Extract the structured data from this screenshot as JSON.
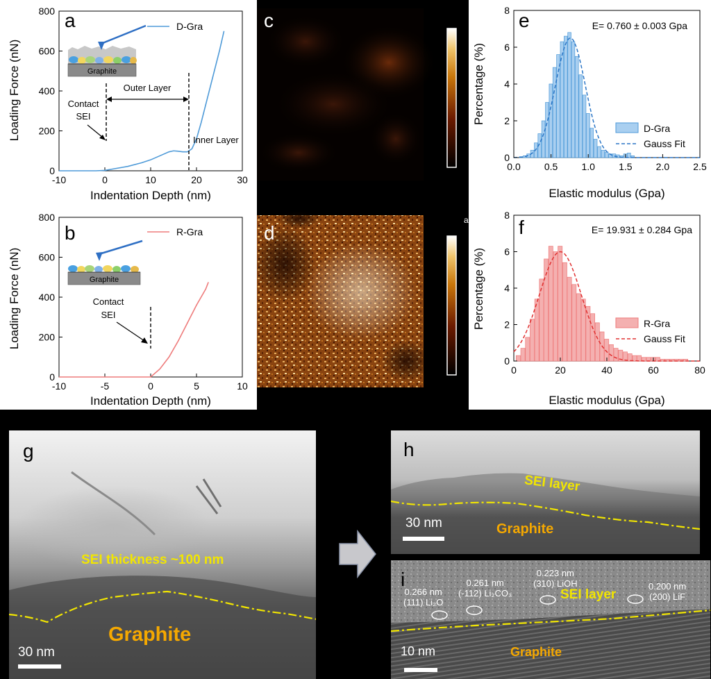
{
  "panel_labels": {
    "a": "a",
    "b": "b",
    "c": "c",
    "d": "d",
    "e": "e",
    "f": "f",
    "g": "g",
    "h": "h",
    "i": "i"
  },
  "panel_a": {
    "legend": "D-Gra",
    "graphite_label": "Graphite",
    "contact_label": "Contact",
    "sei_label": "SEI",
    "outer_layer": "Outer Layer",
    "inner_layer": "Inner Layer",
    "xlabel": "Indentation Depth (nm)",
    "ylabel": "Loading Force (nN)",
    "xticks": [
      "-10",
      "0",
      "10",
      "20",
      "30"
    ],
    "yticks": [
      "0",
      "200",
      "400",
      "600",
      "800"
    ]
  },
  "panel_b": {
    "legend": "R-Gra",
    "graphite_label": "Graphite",
    "contact_label": "Contact",
    "sei_label": "SEI",
    "xlabel": "Indentation Depth (nm)",
    "ylabel": "Loading Force (nN)",
    "xticks": [
      "-10",
      "-5",
      "0",
      "5",
      "10"
    ],
    "yticks": [
      "0",
      "200",
      "400",
      "600",
      "800"
    ]
  },
  "panel_e": {
    "annotation": "E= 0.760 ± 0.003 Gpa",
    "legend_hist": "D-Gra",
    "legend_fit": "Gauss Fit",
    "xlabel": "Elastic modulus (Gpa)",
    "ylabel": "Percentage (%)",
    "xticks": [
      "0.0",
      "0.5",
      "1.0",
      "1.5",
      "2.0",
      "2.5"
    ],
    "yticks": [
      "0",
      "2",
      "4",
      "6",
      "8"
    ]
  },
  "panel_f": {
    "annotation": "E= 19.931 ± 0.284 Gpa",
    "legend_hist": "R-Gra",
    "legend_fit": "Gauss Fit",
    "xlabel": "Elastic modulus (Gpa)",
    "ylabel": "Percentage (%)",
    "xticks": [
      "0",
      "20",
      "40",
      "60",
      "80"
    ],
    "yticks": [
      "0",
      "2",
      "4",
      "6",
      "8"
    ]
  },
  "panel_d_stray": "a",
  "panel_g": {
    "sei_text": "SEI thickness  ~100 nm",
    "graphite": "Graphite",
    "scale": "30 nm"
  },
  "panel_h": {
    "sei_text": "SEI layer",
    "graphite": "Graphite",
    "scale": "30 nm"
  },
  "panel_i": {
    "sei_text": "SEI layer",
    "graphite": "Graphite",
    "scale": "10 nm",
    "ann1": [
      "0.266 nm",
      "(111) Li₂O"
    ],
    "ann2": [
      "0.261 nm",
      "(-112) Li₂CO₃"
    ],
    "ann3": [
      "0.223 nm",
      "(310) LiOH"
    ],
    "ann4": [
      "0.200 nm",
      "(200) LiF"
    ]
  },
  "chart_data": [
    {
      "type": "line",
      "id": "a",
      "series_name": "D-Gra",
      "xlabel": "Indentation Depth (nm)",
      "ylabel": "Loading Force (nN)",
      "xlim": [
        -10,
        30
      ],
      "ylim": [
        0,
        800
      ],
      "x": [
        -10,
        -5,
        -2,
        0,
        2,
        5,
        8,
        10,
        12,
        14,
        15,
        16,
        17,
        18,
        19,
        20,
        21,
        22,
        23,
        24,
        25,
        26
      ],
      "y": [
        0,
        0,
        0,
        2,
        10,
        22,
        40,
        55,
        75,
        95,
        100,
        98,
        95,
        95,
        110,
        160,
        240,
        330,
        420,
        510,
        600,
        700
      ]
    },
    {
      "type": "line",
      "id": "b",
      "series_name": "R-Gra",
      "xlabel": "Indentation Depth (nm)",
      "ylabel": "Loading Force (nN)",
      "xlim": [
        -10,
        10
      ],
      "ylim": [
        0,
        800
      ],
      "x": [
        -10,
        -5,
        -2,
        0,
        1,
        2,
        3,
        4,
        5,
        6,
        6.3
      ],
      "y": [
        0,
        0,
        0,
        0,
        40,
        100,
        180,
        270,
        360,
        440,
        475
      ]
    },
    {
      "type": "bar",
      "id": "e",
      "series_name": "D-Gra",
      "fit": "Gauss Fit",
      "xlabel": "Elastic modulus (Gpa)",
      "ylabel": "Percentage (%)",
      "xlim": [
        0,
        2.5
      ],
      "ylim": [
        0,
        8
      ],
      "x": [
        0.1,
        0.15,
        0.2,
        0.25,
        0.3,
        0.35,
        0.4,
        0.45,
        0.5,
        0.55,
        0.6,
        0.65,
        0.7,
        0.75,
        0.8,
        0.85,
        0.9,
        0.95,
        1.0,
        1.05,
        1.1,
        1.15,
        1.2,
        1.25,
        1.3,
        1.35,
        1.4,
        1.45,
        1.5,
        1.55,
        1.6
      ],
      "values": [
        0.05,
        0.1,
        0.2,
        0.4,
        0.8,
        1.3,
        2.0,
        3.0,
        4.0,
        4.9,
        5.6,
        6.3,
        6.6,
        6.8,
        6.3,
        5.5,
        4.5,
        3.4,
        2.4,
        1.6,
        1.0,
        0.6,
        0.4,
        0.3,
        0.2,
        0.2,
        0.15,
        0.1,
        0.2,
        0.25,
        0.1
      ],
      "fit_mean": 0.76,
      "fit_peak": 6.5,
      "fit_sigma": 0.2
    },
    {
      "type": "bar",
      "id": "f",
      "series_name": "R-Gra",
      "fit": "Gauss Fit",
      "xlabel": "Elastic modulus (Gpa)",
      "ylabel": "Percentage (%)",
      "xlim": [
        0,
        80
      ],
      "ylim": [
        0,
        8
      ],
      "x": [
        2,
        4,
        6,
        8,
        10,
        12,
        14,
        16,
        18,
        20,
        22,
        24,
        26,
        28,
        30,
        32,
        34,
        36,
        38,
        40,
        42,
        44,
        46,
        48,
        50,
        52,
        54,
        56,
        58,
        60,
        62,
        64,
        66,
        68,
        70,
        72,
        74
      ],
      "values": [
        0.3,
        0.7,
        1.3,
        2.3,
        3.4,
        4.5,
        5.6,
        6.3,
        6.0,
        6.3,
        5.4,
        4.6,
        4.2,
        3.7,
        3.4,
        3.0,
        2.6,
        2.1,
        1.6,
        1.2,
        0.9,
        0.7,
        0.6,
        0.5,
        0.4,
        0.3,
        0.3,
        0.2,
        0.2,
        0.2,
        0.2,
        0.1,
        0.1,
        0.1,
        0.1,
        0.1,
        0.1
      ],
      "fit_mean": 20,
      "fit_peak": 6.0,
      "fit_sigma": 9
    }
  ]
}
